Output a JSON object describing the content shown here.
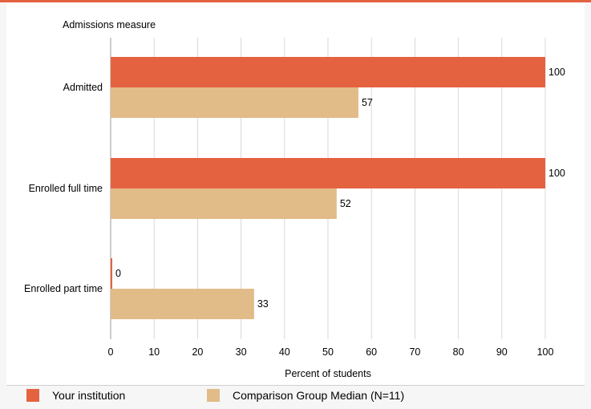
{
  "chart_data": {
    "type": "bar",
    "orientation": "horizontal",
    "title": "Admissions measure",
    "xlabel": "Percent of students",
    "categories": [
      "Admitted",
      "Enrolled full time",
      "Enrolled part time"
    ],
    "series": [
      {
        "name": "Your institution",
        "values": [
          100,
          100,
          0
        ],
        "color": "#e56240"
      },
      {
        "name": "Comparison Group Median (N=11)",
        "values": [
          57,
          52,
          33
        ],
        "color": "#e1bb88"
      }
    ],
    "xlim": [
      0,
      100
    ],
    "xticks": [
      0,
      10,
      20,
      30,
      40,
      50,
      60,
      70,
      80,
      90,
      100
    ],
    "grid": "vertical",
    "legend_position": "bottom"
  },
  "colors": {
    "accent": "#e56240",
    "background": "#f6f6f6",
    "plot_background": "#ffffff",
    "grid": "#d9d9d9"
  }
}
